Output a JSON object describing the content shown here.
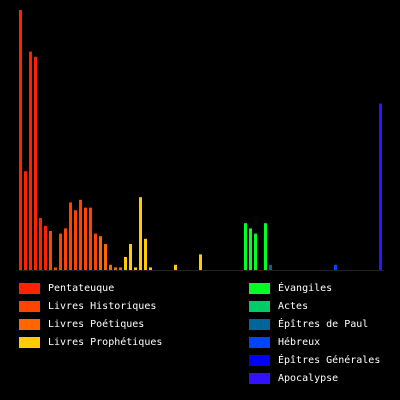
{
  "chart_data": {
    "type": "bar",
    "title": "",
    "xlabel": "",
    "ylabel": "",
    "ylim": [
      0,
      100
    ],
    "grid": false,
    "legend_position": "bottom",
    "series": [
      {
        "name": "Pentateuque",
        "color": "#ff2200",
        "values": [
          100,
          38,
          84,
          82,
          20,
          17
        ]
      },
      {
        "name": "Livres Historiques",
        "color": "#ff4400",
        "values": [
          15,
          1,
          14,
          16,
          26,
          23,
          27,
          24,
          24,
          14
        ]
      },
      {
        "name": "Livres Poétiques",
        "color": "#ff6600",
        "values": [
          13,
          10,
          2,
          1,
          1
        ]
      },
      {
        "name": "Livres Prophétiques",
        "color": "#ffcc00",
        "values": [
          5,
          10,
          1,
          28,
          12,
          1,
          0,
          0,
          0,
          0,
          2,
          0,
          0,
          0,
          0,
          6
        ]
      },
      {
        "name": "Évangiles",
        "color": "#00ff22",
        "values": [
          18,
          16,
          14,
          0,
          18
        ]
      },
      {
        "name": "Actes",
        "color": "#00cc66",
        "values": []
      },
      {
        "name": "Épîtres de Paul",
        "color": "#006699",
        "values": [
          2
        ]
      },
      {
        "name": "Hébreux",
        "color": "#0044ff",
        "values": [
          2
        ]
      },
      {
        "name": "Épîtres Générales",
        "color": "#0000ff",
        "values": []
      },
      {
        "name": "Apocalypse",
        "color": "#3311ff",
        "values": [
          64
        ]
      }
    ],
    "bars": [
      {
        "series": 0,
        "value": 100
      },
      {
        "series": 0,
        "value": 38
      },
      {
        "series": 0,
        "value": 84
      },
      {
        "series": 0,
        "value": 82
      },
      {
        "series": 0,
        "value": 20
      },
      {
        "series": 0,
        "value": 17
      },
      {
        "series": 1,
        "value": 15
      },
      {
        "series": 1,
        "value": 1
      },
      {
        "series": 1,
        "value": 14
      },
      {
        "series": 1,
        "value": 16
      },
      {
        "series": 1,
        "value": 26
      },
      {
        "series": 1,
        "value": 23
      },
      {
        "series": 1,
        "value": 27
      },
      {
        "series": 1,
        "value": 24
      },
      {
        "series": 1,
        "value": 24
      },
      {
        "series": 1,
        "value": 14
      },
      {
        "series": 2,
        "value": 13
      },
      {
        "series": 2,
        "value": 10
      },
      {
        "series": 2,
        "value": 2
      },
      {
        "series": 2,
        "value": 1
      },
      {
        "series": 2,
        "value": 1
      },
      {
        "series": 3,
        "value": 5
      },
      {
        "series": 3,
        "value": 10
      },
      {
        "series": 3,
        "value": 1
      },
      {
        "series": 3,
        "value": 28
      },
      {
        "series": 3,
        "value": 12
      },
      {
        "series": 3,
        "value": 1
      },
      {
        "series": 3,
        "value": 0
      },
      {
        "series": 3,
        "value": 0
      },
      {
        "series": 3,
        "value": 0
      },
      {
        "series": 3,
        "value": 0
      },
      {
        "series": 3,
        "value": 2
      },
      {
        "series": 3,
        "value": 0
      },
      {
        "series": 3,
        "value": 0
      },
      {
        "series": 3,
        "value": 0
      },
      {
        "series": 3,
        "value": 0
      },
      {
        "series": 3,
        "value": 6
      },
      {
        "series": -1,
        "value": 0
      },
      {
        "series": -1,
        "value": 0
      },
      {
        "series": -1,
        "value": 0
      },
      {
        "series": -1,
        "value": 0
      },
      {
        "series": -1,
        "value": 0
      },
      {
        "series": -1,
        "value": 0
      },
      {
        "series": -1,
        "value": 0
      },
      {
        "series": -1,
        "value": 0
      },
      {
        "series": 4,
        "value": 18
      },
      {
        "series": 4,
        "value": 16
      },
      {
        "series": 4,
        "value": 14
      },
      {
        "series": 4,
        "value": 0
      },
      {
        "series": 4,
        "value": 18
      },
      {
        "series": 6,
        "value": 2
      },
      {
        "series": -1,
        "value": 0
      },
      {
        "series": -1,
        "value": 0
      },
      {
        "series": -1,
        "value": 0
      },
      {
        "series": -1,
        "value": 0
      },
      {
        "series": -1,
        "value": 0
      },
      {
        "series": -1,
        "value": 0
      },
      {
        "series": -1,
        "value": 0
      },
      {
        "series": -1,
        "value": 0
      },
      {
        "series": -1,
        "value": 0
      },
      {
        "series": -1,
        "value": 0
      },
      {
        "series": -1,
        "value": 0
      },
      {
        "series": -1,
        "value": 0
      },
      {
        "series": 7,
        "value": 2
      },
      {
        "series": -1,
        "value": 0
      },
      {
        "series": -1,
        "value": 0
      },
      {
        "series": -1,
        "value": 0
      },
      {
        "series": -1,
        "value": 0
      },
      {
        "series": -1,
        "value": 0
      },
      {
        "series": -1,
        "value": 0
      },
      {
        "series": -1,
        "value": 0
      },
      {
        "series": -1,
        "value": 0
      },
      {
        "series": 9,
        "value": 64
      }
    ]
  },
  "legend": {
    "left": [
      {
        "label": "Pentateuque",
        "color": "#ff2200"
      },
      {
        "label": "Livres Historiques",
        "color": "#ff4400"
      },
      {
        "label": "Livres Poétiques",
        "color": "#ff6600"
      },
      {
        "label": "Livres Prophétiques",
        "color": "#ffcc00"
      }
    ],
    "right": [
      {
        "label": "Évangiles",
        "color": "#00ff22"
      },
      {
        "label": "Actes",
        "color": "#00cc66"
      },
      {
        "label": "Épîtres de Paul",
        "color": "#006699"
      },
      {
        "label": "Hébreux",
        "color": "#0044ff"
      },
      {
        "label": "Épîtres Générales",
        "color": "#0000ff"
      },
      {
        "label": "Apocalypse",
        "color": "#3311ff"
      }
    ]
  }
}
